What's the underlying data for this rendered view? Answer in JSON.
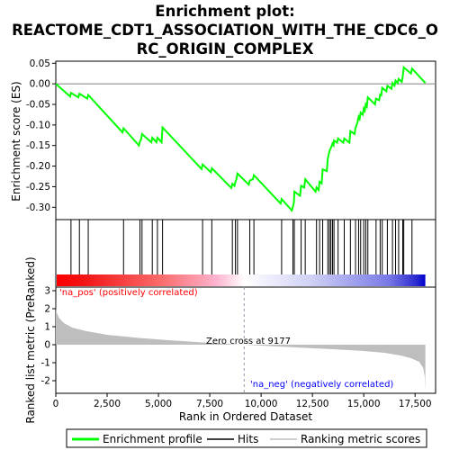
{
  "title_lines": [
    "Enrichment plot:",
    "REACTOME_CDT1_ASSOCIATION_WITH_THE_CDC6_O",
    "RC_ORIGIN_COMPLEX"
  ],
  "colors": {
    "es_line": "#00ff00",
    "hits": "#000000",
    "metric_fill": "#bebebe",
    "pos_label": "#ff0000",
    "neg_label": "#0000ff",
    "zero_line": "#808080"
  },
  "legend": {
    "items": [
      {
        "label": "Enrichment profile",
        "color": "#00ff00",
        "kind": "thick-line"
      },
      {
        "label": "Hits",
        "color": "#000000",
        "kind": "line"
      },
      {
        "label": "Ranking metric scores",
        "color": "#bebebe",
        "kind": "line"
      }
    ]
  },
  "annotations": {
    "pos": "'na_pos' (positively correlated)",
    "neg": "'na_neg' (negatively correlated)",
    "zero_cross": "Zero cross at 9177"
  },
  "chart_data": [
    {
      "type": "line",
      "name": "enrichment-profile",
      "ylabel": "Enrichment score (ES)",
      "xlim": [
        0,
        18500
      ],
      "ylim": [
        -0.33,
        0.055
      ],
      "yticks": [
        0.05,
        0.0,
        -0.05,
        -0.1,
        -0.15,
        -0.2,
        -0.25,
        -0.3
      ],
      "ytick_labels": [
        "0.05",
        "0.00",
        "-0.05",
        "-0.10",
        "-0.15",
        "-0.20",
        "-0.25",
        "-0.30"
      ],
      "hits": [
        740,
        1150,
        1580,
        3300,
        4100,
        4200,
        4700,
        4950,
        5200,
        7150,
        7600,
        8600,
        8750,
        8850,
        9450,
        9650,
        11000,
        11550,
        11620,
        11950,
        12150,
        12700,
        12850,
        13000,
        13250,
        13330,
        13400,
        13480,
        13550,
        13750,
        14050,
        14350,
        14600,
        14750,
        14850,
        15000,
        15100,
        15200,
        15600,
        15800,
        15900,
        16150,
        16400,
        16550,
        16700,
        16900,
        16950,
        17350
      ],
      "points": [
        [
          0,
          0.0
        ],
        [
          700,
          -0.031
        ],
        [
          740,
          -0.022
        ],
        [
          1100,
          -0.033
        ],
        [
          1150,
          -0.024
        ],
        [
          1530,
          -0.036
        ],
        [
          1580,
          -0.027
        ],
        [
          3250,
          -0.118
        ],
        [
          3300,
          -0.108
        ],
        [
          4050,
          -0.15
        ],
        [
          4100,
          -0.14
        ],
        [
          4150,
          -0.136
        ],
        [
          4200,
          -0.122
        ],
        [
          4650,
          -0.142
        ],
        [
          4700,
          -0.131
        ],
        [
          4900,
          -0.142
        ],
        [
          4950,
          -0.131
        ],
        [
          5150,
          -0.142
        ],
        [
          5200,
          -0.106
        ],
        [
          7100,
          -0.207
        ],
        [
          7150,
          -0.196
        ],
        [
          7550,
          -0.215
        ],
        [
          7600,
          -0.205
        ],
        [
          8550,
          -0.253
        ],
        [
          8600,
          -0.243
        ],
        [
          8700,
          -0.248
        ],
        [
          8750,
          -0.238
        ],
        [
          8800,
          -0.232
        ],
        [
          8850,
          -0.218
        ],
        [
          9400,
          -0.245
        ],
        [
          9450,
          -0.235
        ],
        [
          9600,
          -0.232
        ],
        [
          9650,
          -0.222
        ],
        [
          10950,
          -0.291
        ],
        [
          11000,
          -0.28
        ],
        [
          11500,
          -0.308
        ],
        [
          11550,
          -0.298
        ],
        [
          11600,
          -0.288
        ],
        [
          11620,
          -0.262
        ],
        [
          11900,
          -0.272
        ],
        [
          11950,
          -0.248
        ],
        [
          12100,
          -0.252
        ],
        [
          12150,
          -0.232
        ],
        [
          12650,
          -0.262
        ],
        [
          12700,
          -0.252
        ],
        [
          12800,
          -0.258
        ],
        [
          12850,
          -0.238
        ],
        [
          12950,
          -0.242
        ],
        [
          13000,
          -0.208
        ],
        [
          13200,
          -0.212
        ],
        [
          13250,
          -0.182
        ],
        [
          13300,
          -0.17
        ],
        [
          13330,
          -0.163
        ],
        [
          13380,
          -0.158
        ],
        [
          13400,
          -0.155
        ],
        [
          13450,
          -0.15
        ],
        [
          13480,
          -0.145
        ],
        [
          13530,
          -0.149
        ],
        [
          13550,
          -0.138
        ],
        [
          13700,
          -0.143
        ],
        [
          13750,
          -0.133
        ],
        [
          14000,
          -0.143
        ],
        [
          14050,
          -0.133
        ],
        [
          14300,
          -0.143
        ],
        [
          14350,
          -0.115
        ],
        [
          14550,
          -0.122
        ],
        [
          14600,
          -0.107
        ],
        [
          14700,
          -0.093
        ],
        [
          14750,
          -0.08
        ],
        [
          14800,
          -0.085
        ],
        [
          14850,
          -0.07
        ],
        [
          14950,
          -0.075
        ],
        [
          15000,
          -0.06
        ],
        [
          15050,
          -0.065
        ],
        [
          15100,
          -0.05
        ],
        [
          15150,
          -0.055
        ],
        [
          15200,
          -0.033
        ],
        [
          15550,
          -0.05
        ],
        [
          15600,
          -0.036
        ],
        [
          15750,
          -0.04
        ],
        [
          15800,
          -0.026
        ],
        [
          15850,
          -0.028
        ],
        [
          15900,
          -0.01
        ],
        [
          16100,
          -0.018
        ],
        [
          16150,
          -0.005
        ],
        [
          16350,
          -0.012
        ],
        [
          16400,
          0.002
        ],
        [
          16500,
          -0.004
        ],
        [
          16550,
          0.008
        ],
        [
          16650,
          0.002
        ],
        [
          16700,
          0.012
        ],
        [
          16850,
          0.005
        ],
        [
          16900,
          0.018
        ],
        [
          16950,
          0.04
        ],
        [
          17300,
          0.025
        ],
        [
          17350,
          0.037
        ],
        [
          18000,
          0.002
        ]
      ]
    },
    {
      "type": "area",
      "name": "ranking-metric",
      "xlabel": "Rank in Ordered Dataset",
      "ylabel": "Ranked list metric (PreRanked)",
      "xlim": [
        0,
        18500
      ],
      "ylim": [
        -2.7,
        3.2
      ],
      "zero_cross": 9177,
      "xticks": [
        0,
        2500,
        5000,
        7500,
        10000,
        12500,
        15000,
        17500
      ],
      "xtick_labels": [
        "0",
        "2,500",
        "5,000",
        "7,500",
        "10,000",
        "12,500",
        "15,000",
        "17,500"
      ],
      "yticks": [
        3,
        2,
        1,
        0,
        -1,
        -2
      ],
      "ytick_labels": [
        "3",
        "2",
        "1",
        "0",
        "-1",
        "-2"
      ],
      "points": [
        [
          0,
          2.6
        ],
        [
          10,
          1.9
        ],
        [
          150,
          1.5
        ],
        [
          400,
          1.2
        ],
        [
          800,
          0.95
        ],
        [
          1500,
          0.75
        ],
        [
          2500,
          0.55
        ],
        [
          4000,
          0.38
        ],
        [
          5500,
          0.25
        ],
        [
          7000,
          0.14
        ],
        [
          8500,
          0.04
        ],
        [
          9177,
          0.0
        ],
        [
          10500,
          -0.08
        ],
        [
          12000,
          -0.17
        ],
        [
          13500,
          -0.25
        ],
        [
          15000,
          -0.35
        ],
        [
          16000,
          -0.45
        ],
        [
          16800,
          -0.6
        ],
        [
          17300,
          -0.75
        ],
        [
          17700,
          -0.95
        ],
        [
          17900,
          -1.3
        ],
        [
          17980,
          -1.8
        ],
        [
          18000,
          -2.6
        ]
      ]
    }
  ]
}
